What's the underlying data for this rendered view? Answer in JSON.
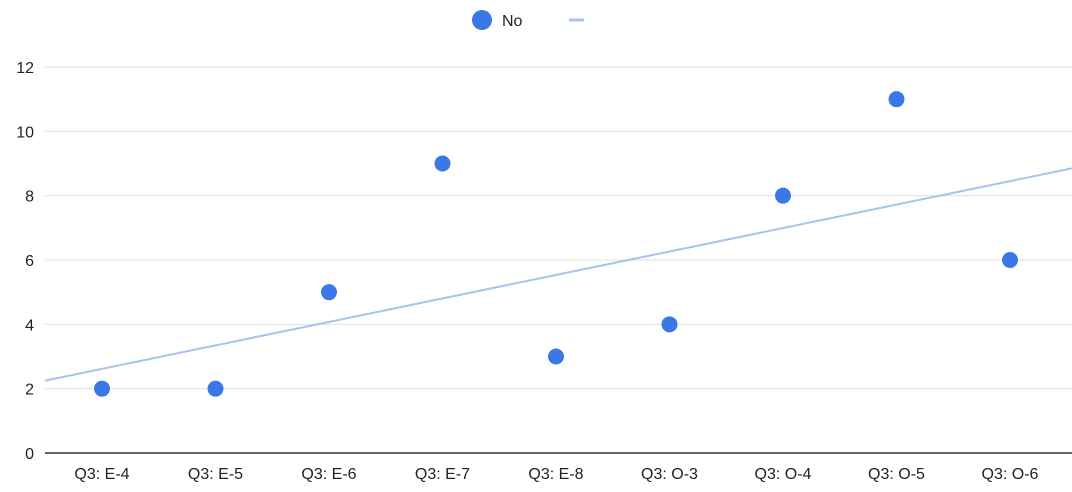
{
  "chart_data": {
    "type": "scatter",
    "title": "",
    "xlabel": "",
    "ylabel": "",
    "categories": [
      "Q3: E-4",
      "Q3: E-5",
      "Q3: E-6",
      "Q3: E-7",
      "Q3: E-8",
      "Q3: O-3",
      "Q3: O-4",
      "Q3: O-5",
      "Q3: O-6"
    ],
    "series": [
      {
        "name": "No",
        "values": [
          2,
          2,
          5,
          9,
          3,
          4,
          8,
          11,
          6
        ],
        "color": "#3b78e7"
      }
    ],
    "trendline": {
      "type": "linear",
      "start_value": 2.25,
      "end_value": 8.85,
      "color": "#a8c3f0"
    },
    "ylim": [
      0,
      12
    ],
    "yticks": [
      0,
      2,
      4,
      6,
      8,
      10,
      12
    ],
    "grid": true,
    "legend_position": "top-center",
    "legend": {
      "label": "No"
    }
  }
}
